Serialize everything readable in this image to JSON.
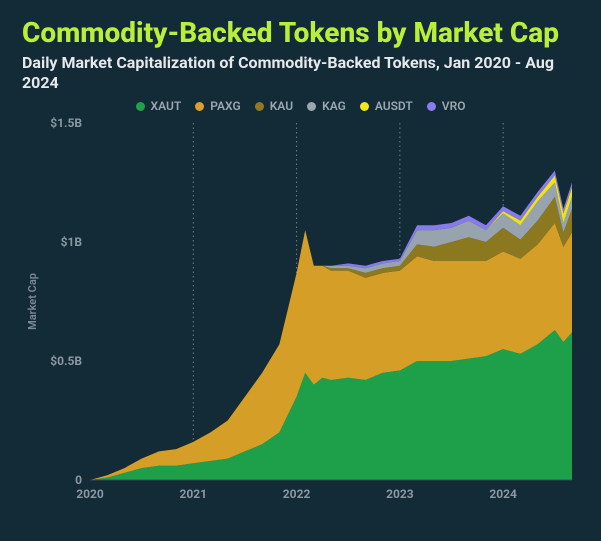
{
  "title": "Commodity-Backed Tokens by Market Cap",
  "title_color": "#b9ef3a",
  "title_fontsize": 28,
  "subtitle": "Daily Market Capitalization of Commodity-Backed Tokens, Jan 2020 - Aug 2024",
  "subtitle_color": "#e6e9ec",
  "subtitle_fontsize": 16,
  "background_color": "#132a37",
  "chart": {
    "type": "stacked-area",
    "y_axis": {
      "label": "Market Cap",
      "ticks": [
        {
          "v": 0,
          "label": "0"
        },
        {
          "v": 0.5,
          "label": "$0.5B"
        },
        {
          "v": 1.0,
          "label": "$1B"
        },
        {
          "v": 1.5,
          "label": "$1.5B"
        }
      ],
      "ylim": [
        0,
        1.5
      ],
      "label_fontsize": 11,
      "tick_fontsize": 12
    },
    "x_axis": {
      "ticks": [
        {
          "t": 0,
          "label": "2020"
        },
        {
          "t": 12,
          "label": "2021"
        },
        {
          "t": 24,
          "label": "2022"
        },
        {
          "t": 36,
          "label": "2023"
        },
        {
          "t": 48,
          "label": "2024"
        }
      ],
      "xlim": [
        0,
        56
      ],
      "tick_fontsize": 12
    },
    "grid_color": "#6f7d87",
    "grid_dash": "1.5 3",
    "series": [
      {
        "name": "XAUT",
        "color": "#1fa34a"
      },
      {
        "name": "PAXG",
        "color": "#d9a127"
      },
      {
        "name": "KAU",
        "color": "#8f7a1f"
      },
      {
        "name": "KAG",
        "color": "#9aa7b0"
      },
      {
        "name": "AUSDT",
        "color": "#f4e61a"
      },
      {
        "name": "VRO",
        "color": "#8a7cf0"
      }
    ],
    "times": [
      0,
      2,
      4,
      6,
      8,
      10,
      12,
      14,
      16,
      18,
      20,
      22,
      24,
      25,
      26,
      27,
      28,
      30,
      32,
      34,
      36,
      38,
      40,
      42,
      44,
      46,
      48,
      50,
      52,
      54,
      55,
      56
    ],
    "stacks": {
      "XAUT": [
        0.0,
        0.01,
        0.03,
        0.05,
        0.06,
        0.06,
        0.07,
        0.08,
        0.09,
        0.12,
        0.15,
        0.2,
        0.35,
        0.45,
        0.4,
        0.43,
        0.42,
        0.43,
        0.42,
        0.45,
        0.46,
        0.5,
        0.5,
        0.5,
        0.51,
        0.52,
        0.55,
        0.53,
        0.57,
        0.63,
        0.58,
        0.62
      ],
      "PAXG": [
        0.0,
        0.01,
        0.02,
        0.04,
        0.06,
        0.07,
        0.09,
        0.12,
        0.16,
        0.23,
        0.3,
        0.37,
        0.52,
        0.6,
        0.5,
        0.47,
        0.46,
        0.45,
        0.43,
        0.42,
        0.42,
        0.44,
        0.42,
        0.42,
        0.41,
        0.4,
        0.41,
        0.4,
        0.42,
        0.45,
        0.4,
        0.42
      ],
      "KAU": [
        0.0,
        0.0,
        0.0,
        0.0,
        0.0,
        0.0,
        0.0,
        0.0,
        0.0,
        0.0,
        0.0,
        0.0,
        0.0,
        0.0,
        0.0,
        0.0,
        0.01,
        0.01,
        0.02,
        0.02,
        0.02,
        0.05,
        0.06,
        0.08,
        0.1,
        0.08,
        0.1,
        0.08,
        0.1,
        0.11,
        0.06,
        0.1
      ],
      "KAG": [
        0.0,
        0.0,
        0.0,
        0.0,
        0.0,
        0.0,
        0.0,
        0.0,
        0.0,
        0.0,
        0.0,
        0.0,
        0.0,
        0.0,
        0.0,
        0.0,
        0.01,
        0.01,
        0.02,
        0.02,
        0.02,
        0.06,
        0.07,
        0.06,
        0.07,
        0.05,
        0.06,
        0.06,
        0.08,
        0.06,
        0.04,
        0.05
      ],
      "AUSDT": [
        0.0,
        0.0,
        0.0,
        0.0,
        0.0,
        0.0,
        0.0,
        0.0,
        0.0,
        0.0,
        0.0,
        0.0,
        0.0,
        0.0,
        0.0,
        0.0,
        0.0,
        0.0,
        0.0,
        0.0,
        0.0,
        0.0,
        0.0,
        0.0,
        0.0,
        0.0,
        0.01,
        0.02,
        0.02,
        0.03,
        0.04,
        0.04
      ],
      "VRO": [
        0.0,
        0.0,
        0.0,
        0.0,
        0.0,
        0.0,
        0.0,
        0.0,
        0.0,
        0.0,
        0.0,
        0.0,
        0.0,
        0.0,
        0.0,
        0.0,
        0.0,
        0.01,
        0.01,
        0.01,
        0.01,
        0.02,
        0.02,
        0.02,
        0.02,
        0.02,
        0.02,
        0.02,
        0.02,
        0.02,
        0.02,
        0.02
      ]
    }
  }
}
